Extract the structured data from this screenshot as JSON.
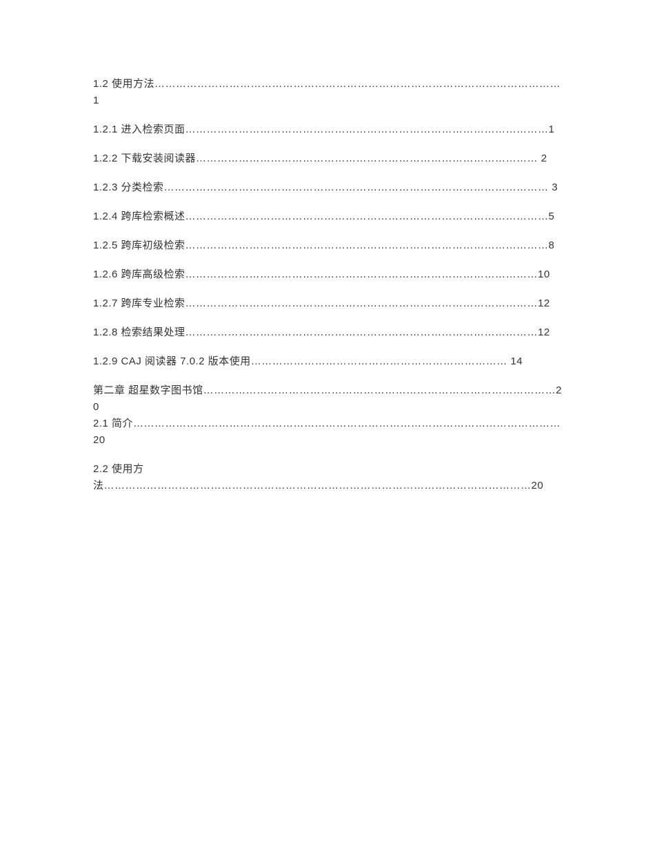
{
  "entries": [
    {
      "text": "1.2 使用方法……………………………………………………………………………………………………1",
      "tight": false
    },
    {
      "text": "1.2.1 进入检索页面…………………………………………………………………………………………1",
      "tight": false
    },
    {
      "text": "1.2.2 下载安装阅读器…………………………………………………………………………………… 2",
      "tight": false
    },
    {
      "text": "1.2.3 分类检索……………………………………………………………………………………………… 3",
      "tight": false
    },
    {
      "text": "1.2.4 跨库检索概述…………………………………………………………………………………………5",
      "tight": false
    },
    {
      "text": "1.2.5 跨库初级检索…………………………………………………………………………………………8",
      "tight": false
    },
    {
      "text": "1.2.6 跨库高级检索………………………………………………………………………………………10",
      "tight": false
    },
    {
      "text": "1.2.7 跨库专业检索………………………………………………………………………………………12",
      "tight": false
    },
    {
      "text": "1.2.8 检索结果处理………………………………………………………………………………………12",
      "tight": false
    },
    {
      "text": "1.2.9 CAJ 阅读器 7.0.2 版本使用……………………………………………………………… 14",
      "tight": false
    },
    {
      "text": "第二章 超星数字图书馆………………………………………………………………………………………20",
      "tight": true
    },
    {
      "text": "2.1 简介…………………………………………………………………………………………………………20",
      "tight": false
    },
    {
      "text": "2.2 使用方法…………………………………………………………………………………………………………20",
      "tight": false
    }
  ]
}
